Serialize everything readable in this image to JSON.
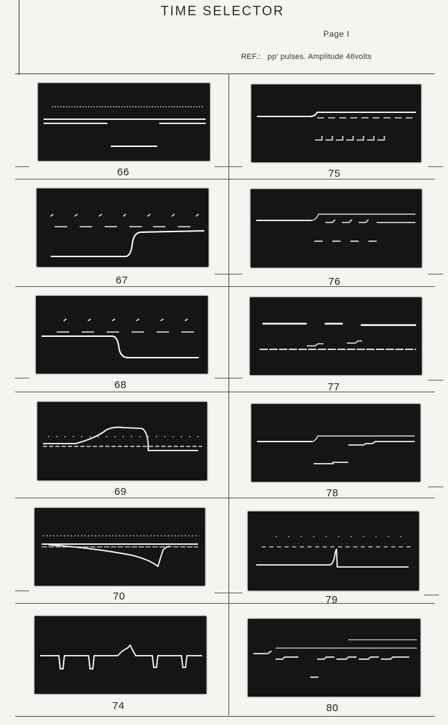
{
  "header": {
    "title": "TIME SELECTOR",
    "page": "Page I",
    "ref_label": "REF.:",
    "ref_text": "pp' pulses. Amplitude 46volts"
  },
  "panels": [
    {
      "id": "66",
      "label": "66"
    },
    {
      "id": "75",
      "label": "75"
    },
    {
      "id": "67",
      "label": "67"
    },
    {
      "id": "76",
      "label": "76"
    },
    {
      "id": "68",
      "label": "68"
    },
    {
      "id": "77",
      "label": "77"
    },
    {
      "id": "69",
      "label": "69"
    },
    {
      "id": "78",
      "label": "78"
    },
    {
      "id": "70",
      "label": "70"
    },
    {
      "id": "79",
      "label": "79"
    },
    {
      "id": "74",
      "label": "74"
    },
    {
      "id": "80",
      "label": "80"
    }
  ],
  "colors": {
    "screen": "#151515",
    "trace": "#f0f0f0",
    "paper": "#f4f4f1"
  }
}
